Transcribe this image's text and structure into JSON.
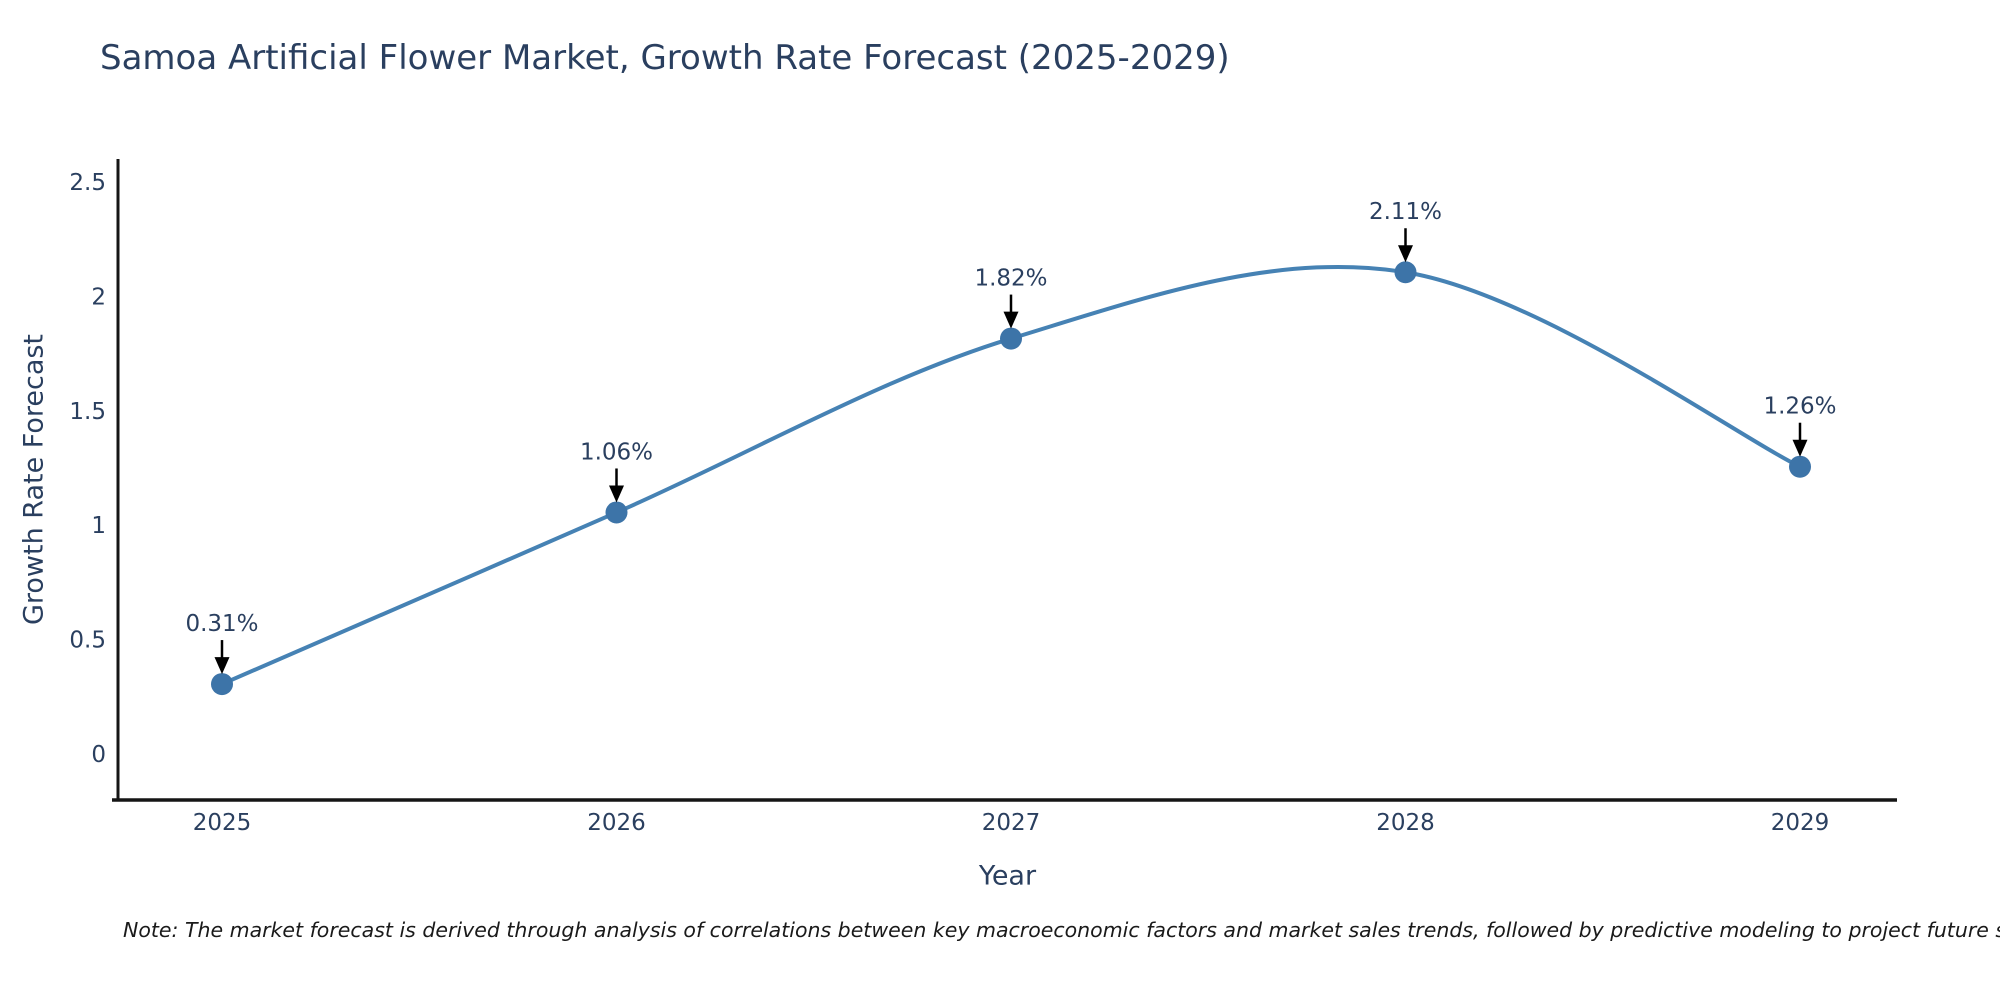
{
  "title": "Samoa Artificial Flower Market, Growth Rate Forecast (2025-2029)",
  "note": "Note: The market forecast is derived through analysis of correlations between key macroeconomic factors and market sales trends, followed by predictive modeling to project future sales",
  "chart_data": {
    "type": "line",
    "line_shape": "spline",
    "title": "Samoa Artificial Flower Market, Growth Rate Forecast (2025-2029)",
    "xlabel": "Year",
    "ylabel": "Growth Rate Forecast",
    "x": [
      "2025",
      "2026",
      "2027",
      "2028",
      "2029"
    ],
    "values": [
      0.31,
      1.06,
      1.82,
      2.11,
      1.26
    ],
    "point_labels": [
      "0.31%",
      "1.06%",
      "1.82%",
      "2.11%",
      "1.26%"
    ],
    "ytick_labels": [
      "0",
      "0.5",
      "1",
      "1.5",
      "2",
      "2.5"
    ],
    "ytick_values": [
      0,
      0.5,
      1,
      1.5,
      2,
      2.5
    ],
    "ylim": [
      -0.2,
      2.6
    ],
    "grid": false,
    "legend": "none",
    "annotations_have_arrows": true,
    "colors": {
      "line": "#4682b4",
      "marker": "#3d74a8",
      "axis_line": "#151515",
      "text": "#2a3f5f",
      "note_text": "#1a1a1a",
      "arrow": "#000000",
      "background": "#ffffff"
    }
  }
}
